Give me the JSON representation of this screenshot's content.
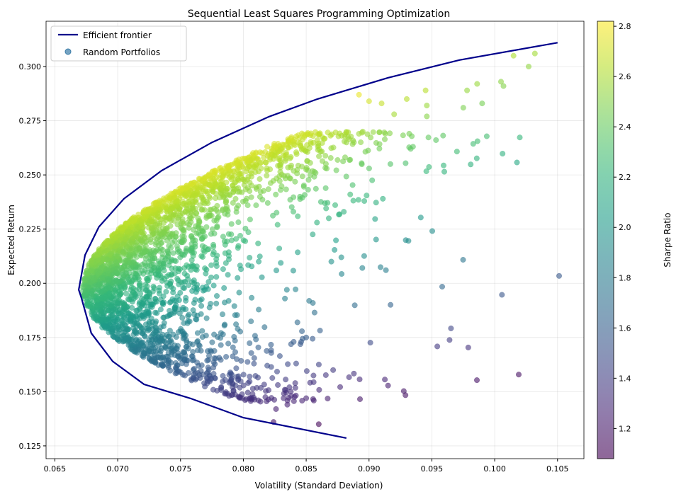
{
  "chart_data": {
    "type": "scatter",
    "title": "Sequential Least Squares Programming Optimization",
    "xlabel": "Volatility (Standard Deviation)",
    "ylabel": "Expected Return",
    "xlim": [
      0.0643,
      0.1071
    ],
    "ylim": [
      0.1191,
      0.3209
    ],
    "xticks": [
      "0.065",
      "0.070",
      "0.075",
      "0.080",
      "0.085",
      "0.090",
      "0.095",
      "0.100",
      "0.105"
    ],
    "yticks": [
      "0.125",
      "0.150",
      "0.175",
      "0.200",
      "0.225",
      "0.250",
      "0.275",
      "0.300"
    ],
    "grid": true,
    "legend": {
      "placement": "top-left",
      "entries": [
        "Efficient frontier",
        "Random Portfolios"
      ]
    },
    "colorbar": {
      "label": "Sharpe Ratio",
      "range": [
        1.08,
        2.82
      ],
      "ticks": [
        "1.2",
        "1.4",
        "1.6",
        "1.8",
        "2.0",
        "2.2",
        "2.4",
        "2.6",
        "2.8"
      ],
      "colormap": "viridis"
    },
    "frontier": {
      "name": "Efficient frontier",
      "color": "#00008b",
      "x": [
        0.0882,
        0.08,
        0.0758,
        0.0721,
        0.0696,
        0.0679,
        0.0671,
        0.0669,
        0.0674,
        0.0685,
        0.0705,
        0.0735,
        0.0775,
        0.082,
        0.0859,
        0.0915,
        0.0972,
        0.105
      ],
      "y": [
        0.1286,
        0.138,
        0.1469,
        0.1534,
        0.164,
        0.177,
        0.1935,
        0.197,
        0.213,
        0.226,
        0.239,
        0.252,
        0.265,
        0.2768,
        0.285,
        0.2948,
        0.303,
        0.311
      ]
    },
    "random_portfolios": {
      "name": "Random Portfolios",
      "count": 3000,
      "seed": 42,
      "risk_free_for_color": 0.04,
      "alpha": 0.6,
      "outliers": [
        [
          0.1032,
          0.306
        ],
        [
          0.1015,
          0.305
        ],
        [
          0.1027,
          0.3
        ],
        [
          0.1005,
          0.293
        ],
        [
          0.1007,
          0.291
        ],
        [
          0.0986,
          0.292
        ],
        [
          0.099,
          0.283
        ],
        [
          0.0978,
          0.289
        ],
        [
          0.0975,
          0.281
        ],
        [
          0.0945,
          0.289
        ],
        [
          0.0946,
          0.282
        ],
        [
          0.0946,
          0.277
        ],
        [
          0.093,
          0.285
        ],
        [
          0.0932,
          0.269
        ],
        [
          0.0935,
          0.263
        ],
        [
          0.092,
          0.278
        ],
        [
          0.091,
          0.283
        ],
        [
          0.0913,
          0.269
        ],
        [
          0.0917,
          0.255
        ],
        [
          0.0911,
          0.239
        ],
        [
          0.0892,
          0.287
        ],
        [
          0.09,
          0.284
        ],
        [
          0.0895,
          0.27
        ],
        [
          0.0885,
          0.257
        ],
        [
          0.0885,
          0.241
        ],
        [
          0.0868,
          0.23
        ],
        [
          0.086,
          0.135
        ],
        [
          0.085,
          0.147
        ],
        [
          0.0835,
          0.144
        ],
        [
          0.0838,
          0.148
        ],
        [
          0.0832,
          0.147
        ],
        [
          0.0824,
          0.136
        ],
        [
          0.0826,
          0.142
        ],
        [
          0.0842,
          0.163
        ],
        [
          0.0846,
          0.173
        ],
        [
          0.084,
          0.173
        ],
        [
          0.0843,
          0.182
        ],
        [
          0.085,
          0.175
        ],
        [
          0.087,
          0.21
        ],
        [
          0.0878,
          0.212
        ],
        [
          0.0812,
          0.146
        ],
        [
          0.0805,
          0.157
        ]
      ]
    }
  }
}
